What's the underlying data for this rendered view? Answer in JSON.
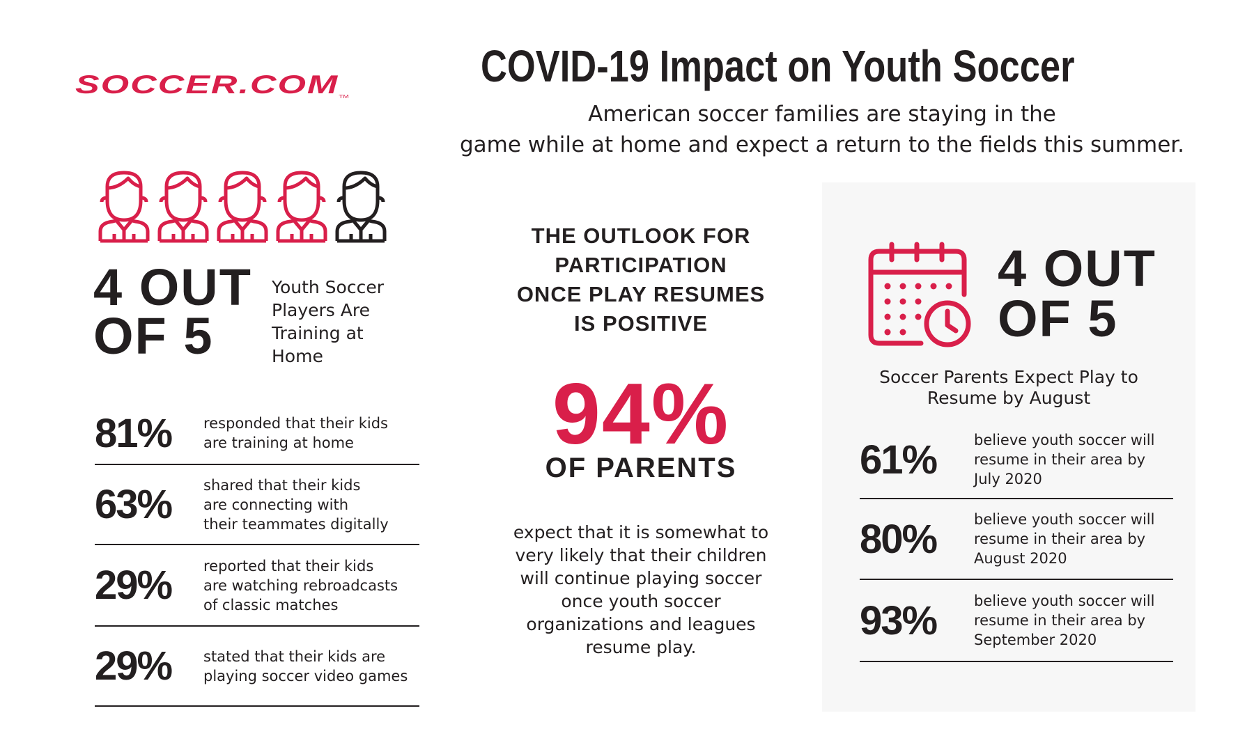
{
  "brand": {
    "logo_text": "SOCCER.COM",
    "trademark": "TM",
    "accent_color": "#d91f4a",
    "text_color": "#231f20"
  },
  "header": {
    "title": "COVID-19 Impact on Youth Soccer",
    "subtitle_lines": [
      "American soccer families are staying in the",
      "game while at home and expect a return to the fields this summer."
    ]
  },
  "left": {
    "icon_names": [
      "person-icon",
      "person-icon",
      "person-icon",
      "person-icon",
      "person-icon"
    ],
    "highlighted_people": 4,
    "total_people": 5,
    "big_fraction_lines": [
      "4 OUT",
      "OF 5"
    ],
    "big_fraction_desc_lines": [
      "Youth Soccer",
      "Players Are",
      "Training at",
      "Home"
    ],
    "stats": [
      {
        "pct": "81%",
        "desc_lines": [
          "responded that their kids",
          "are training at home"
        ]
      },
      {
        "pct": "63%",
        "desc_lines": [
          "shared that their kids",
          "are connecting with",
          "their teammates digitally"
        ]
      },
      {
        "pct": "29%",
        "desc_lines": [
          "reported that their kids",
          "are watching rebroadcasts",
          "of classic matches"
        ]
      },
      {
        "pct": "29%",
        "desc_lines": [
          "stated that their kids are",
          "playing soccer video games"
        ]
      }
    ]
  },
  "center": {
    "outlook_lines": [
      "THE OUTLOOK FOR",
      "PARTICIPATION",
      "ONCE PLAY RESUMES",
      "IS POSITIVE"
    ],
    "big_pct": "94%",
    "of_parents": "OF PARENTS",
    "expect_lines": [
      "expect that it is somewhat to",
      "very likely that their children",
      "will continue playing soccer",
      "once youth soccer",
      "organizations and leagues",
      "resume play."
    ]
  },
  "right": {
    "icon_name": "calendar-clock-icon",
    "big_fraction_lines": [
      "4 OUT",
      "OF 5"
    ],
    "big_fraction_desc_lines": [
      "Soccer Parents Expect Play to",
      "Resume by August"
    ],
    "stats": [
      {
        "pct": "61%",
        "desc_lines": [
          "believe youth soccer will",
          "resume in their area by",
          "July 2020"
        ]
      },
      {
        "pct": "80%",
        "desc_lines": [
          "believe youth soccer will",
          "resume in their area by",
          "August 2020"
        ]
      },
      {
        "pct": "93%",
        "desc_lines": [
          "believe youth soccer will",
          "resume in their area by",
          "September 2020"
        ]
      }
    ]
  }
}
